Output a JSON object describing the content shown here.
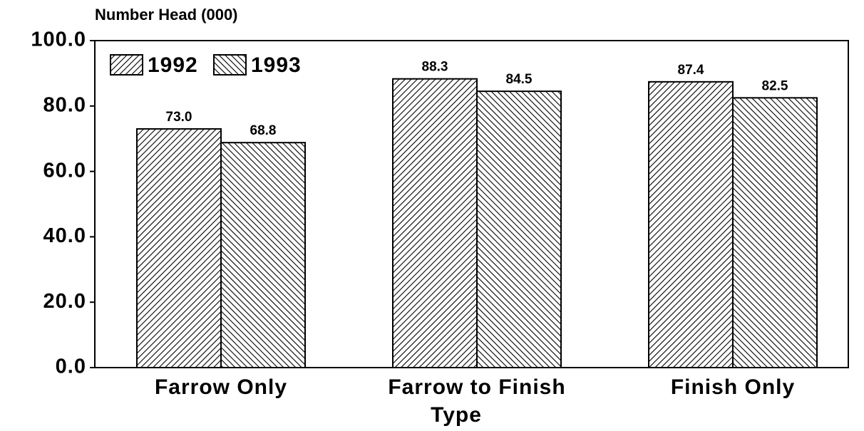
{
  "chart_data": {
    "type": "bar",
    "y_label": "Number Head (000)",
    "x_label": "Type",
    "categories": [
      "Farrow Only",
      "Farrow to Finish",
      "Finish Only"
    ],
    "series": [
      {
        "name": "1992",
        "color": "#000000",
        "values": [
          73.0,
          88.3,
          87.4
        ],
        "value_labels": [
          "73.0",
          "88.3",
          "87.4"
        ]
      },
      {
        "name": "1993",
        "color": "#000000",
        "values": [
          68.8,
          84.5,
          82.5
        ],
        "value_labels": [
          "68.8",
          "84.5",
          "82.5"
        ]
      }
    ],
    "ylim": [
      0,
      100
    ],
    "yticks": [
      {
        "value": 0,
        "label": "0.0"
      },
      {
        "value": 20,
        "label": "20.0"
      },
      {
        "value": 40,
        "label": "40.0"
      },
      {
        "value": 60,
        "label": "60.0"
      },
      {
        "value": 80,
        "label": "80.0"
      },
      {
        "value": 100,
        "label": "100.0"
      }
    ],
    "legend": "upper left",
    "grid": false
  }
}
